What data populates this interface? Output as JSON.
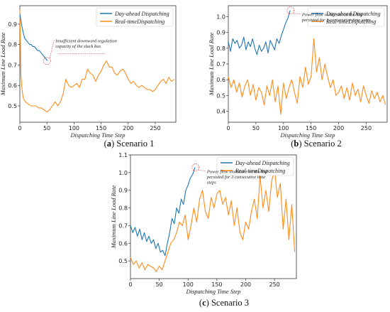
{
  "colors": {
    "day_ahead": "#1f77b4",
    "real_time": "#ff8c1a",
    "annotation": "#e05050"
  },
  "chart_data": [
    {
      "type": "line",
      "caption_label": "(a)",
      "caption_text": "Scenario 1",
      "xlabel": "Dispatching Time Step",
      "ylabel": "Maximum Line Load Rate",
      "xlim": [
        0,
        288
      ],
      "ylim": [
        0.42,
        0.99
      ],
      "xticks": [
        0,
        50,
        100,
        150,
        200,
        250
      ],
      "yticks": [
        0.5,
        0.6,
        0.7,
        0.8,
        0.9
      ],
      "tick_format": 1,
      "grid": false,
      "legend_position": "top-right",
      "annotation_lines": [
        "Insufficient downward regulation",
        "capacity of the slack bus"
      ],
      "annotation_point": [
        50,
        0.72
      ],
      "series": [
        {
          "name": "Day-ahead Dispatching",
          "color": "#1f77b4",
          "x": [
            0,
            3,
            6,
            9,
            12,
            15,
            18,
            21,
            24,
            27,
            30,
            33,
            36,
            39,
            42,
            45,
            48,
            51
          ],
          "y": [
            0.95,
            0.9,
            0.86,
            0.83,
            0.82,
            0.81,
            0.8,
            0.8,
            0.79,
            0.79,
            0.78,
            0.77,
            0.77,
            0.76,
            0.75,
            0.74,
            0.73,
            0.72
          ]
        },
        {
          "name": "Real-timeDispatching",
          "color": "#ff8c1a",
          "x": [
            0,
            2,
            4,
            6,
            8,
            10,
            15,
            20,
            25,
            30,
            35,
            40,
            45,
            50,
            55,
            60,
            65,
            70,
            75,
            80,
            85,
            90,
            95,
            100,
            105,
            110,
            115,
            120,
            125,
            130,
            135,
            140,
            145,
            150,
            155,
            160,
            165,
            170,
            175,
            180,
            185,
            190,
            195,
            200,
            205,
            210,
            215,
            220,
            225,
            230,
            235,
            240,
            245,
            250,
            255,
            260,
            265,
            270,
            275,
            280,
            285
          ],
          "y": [
            0.97,
            0.65,
            0.58,
            0.54,
            0.53,
            0.52,
            0.51,
            0.5,
            0.5,
            0.5,
            0.49,
            0.49,
            0.48,
            0.47,
            0.48,
            0.5,
            0.52,
            0.5,
            0.52,
            0.56,
            0.63,
            0.6,
            0.59,
            0.6,
            0.61,
            0.59,
            0.63,
            0.63,
            0.68,
            0.66,
            0.65,
            0.62,
            0.65,
            0.67,
            0.7,
            0.72,
            0.69,
            0.69,
            0.66,
            0.65,
            0.67,
            0.68,
            0.66,
            0.63,
            0.61,
            0.62,
            0.6,
            0.59,
            0.6,
            0.59,
            0.58,
            0.58,
            0.57,
            0.58,
            0.6,
            0.62,
            0.63,
            0.61,
            0.64,
            0.62,
            0.63
          ]
        }
      ]
    },
    {
      "type": "line",
      "caption_label": "(b)",
      "caption_text": "Scenario 2",
      "xlabel": "Dispatching Time Step",
      "ylabel": "Maximum Line Load Rate",
      "xlim": [
        0,
        288
      ],
      "ylim": [
        0.33,
        1.07
      ],
      "xticks": [
        0,
        50,
        100,
        150,
        200,
        250
      ],
      "yticks": [
        0.4,
        0.5,
        0.6,
        0.7,
        0.8,
        0.9,
        1.0
      ],
      "tick_format": 1,
      "grid": false,
      "legend_position": "top-right",
      "annotation_lines": [
        "Power flow violations on the line",
        "persisted for 3 consecutive time steps"
      ],
      "annotation_point": [
        113,
        1.04
      ],
      "series": [
        {
          "name": "Day-ahead Dispatching",
          "color": "#1f77b4",
          "x": [
            0,
            4,
            8,
            12,
            16,
            20,
            24,
            28,
            32,
            36,
            40,
            44,
            48,
            52,
            56,
            60,
            64,
            68,
            72,
            76,
            80,
            84,
            88,
            92,
            96,
            100,
            104,
            108,
            112
          ],
          "y": [
            0.84,
            0.78,
            0.86,
            0.83,
            0.85,
            0.8,
            0.82,
            0.87,
            0.79,
            0.84,
            0.81,
            0.86,
            0.8,
            0.76,
            0.82,
            0.78,
            0.8,
            0.84,
            0.77,
            0.85,
            0.82,
            0.79,
            0.86,
            0.83,
            0.88,
            0.92,
            0.96,
            0.99,
            1.04
          ]
        },
        {
          "name": "Real-timeDispatching",
          "color": "#ff8c1a",
          "x": [
            0,
            5,
            10,
            15,
            20,
            25,
            30,
            35,
            40,
            45,
            50,
            55,
            60,
            65,
            70,
            75,
            80,
            85,
            90,
            95,
            100,
            105,
            110,
            115,
            120,
            125,
            130,
            135,
            140,
            145,
            150,
            155,
            160,
            165,
            170,
            175,
            180,
            185,
            190,
            195,
            200,
            205,
            210,
            215,
            220,
            225,
            230,
            235,
            240,
            245,
            250,
            255,
            260,
            265,
            270,
            275,
            280,
            285
          ],
          "y": [
            0.62,
            0.55,
            0.6,
            0.52,
            0.58,
            0.49,
            0.56,
            0.6,
            0.5,
            0.57,
            0.47,
            0.55,
            0.52,
            0.44,
            0.56,
            0.5,
            0.6,
            0.46,
            0.56,
            0.38,
            0.58,
            0.48,
            0.55,
            0.6,
            0.52,
            0.45,
            0.62,
            0.55,
            0.68,
            0.57,
            0.62,
            0.86,
            0.65,
            0.74,
            0.6,
            0.7,
            0.62,
            0.55,
            0.6,
            0.5,
            0.52,
            0.56,
            0.48,
            0.55,
            0.47,
            0.58,
            0.5,
            0.54,
            0.46,
            0.56,
            0.5,
            0.45,
            0.53,
            0.48,
            0.52,
            0.46,
            0.5,
            0.44
          ]
        }
      ]
    },
    {
      "type": "line",
      "caption_label": "(c)",
      "caption_text": "Scenario 3",
      "xlabel": "Dispatching Time Step",
      "ylabel": "Maximum Line Load Rate",
      "xlim": [
        0,
        288
      ],
      "ylim": [
        0.4,
        1.1
      ],
      "xticks": [
        0,
        50,
        100,
        150,
        200,
        250
      ],
      "yticks": [
        0.5,
        0.6,
        0.7,
        0.8,
        0.9,
        1.0,
        1.1
      ],
      "tick_format": 1,
      "grid": false,
      "legend_position": "top-right",
      "annotation_lines": [
        "Power flow violations on the line",
        "persisted for 3 consecutive time",
        "steps"
      ],
      "annotation_point": [
        113,
        1.03
      ],
      "series": [
        {
          "name": "Day-ahead Dispatching",
          "color": "#1f77b4",
          "x": [
            0,
            4,
            8,
            12,
            16,
            20,
            24,
            28,
            32,
            36,
            40,
            44,
            48,
            52,
            56,
            60,
            64,
            68,
            72,
            76,
            80,
            84,
            88,
            92,
            96,
            100,
            104,
            108,
            112
          ],
          "y": [
            0.7,
            0.66,
            0.69,
            0.64,
            0.68,
            0.62,
            0.66,
            0.61,
            0.64,
            0.6,
            0.62,
            0.57,
            0.6,
            0.55,
            0.56,
            0.53,
            0.6,
            0.66,
            0.74,
            0.71,
            0.8,
            0.77,
            0.85,
            0.82,
            0.9,
            0.93,
            0.97,
            0.99,
            1.03
          ]
        },
        {
          "name": "Real-timeDispatching",
          "color": "#ff8c1a",
          "x": [
            0,
            5,
            10,
            15,
            20,
            25,
            30,
            35,
            40,
            45,
            50,
            55,
            60,
            65,
            70,
            75,
            80,
            85,
            90,
            95,
            100,
            105,
            110,
            115,
            120,
            125,
            130,
            135,
            140,
            145,
            150,
            155,
            160,
            165,
            170,
            175,
            180,
            185,
            190,
            195,
            200,
            205,
            210,
            215,
            220,
            225,
            230,
            235,
            240,
            245,
            250,
            255,
            260,
            265,
            270,
            275,
            280,
            285
          ],
          "y": [
            0.52,
            0.48,
            0.5,
            0.46,
            0.49,
            0.45,
            0.48,
            0.47,
            0.46,
            0.44,
            0.47,
            0.45,
            0.5,
            0.55,
            0.6,
            0.62,
            0.66,
            0.72,
            0.7,
            0.76,
            0.62,
            0.7,
            0.8,
            0.72,
            0.85,
            0.9,
            0.78,
            0.74,
            0.86,
            0.8,
            0.88,
            0.9,
            0.82,
            0.86,
            0.76,
            0.84,
            0.7,
            0.8,
            0.66,
            0.62,
            0.72,
            0.68,
            0.78,
            0.85,
            0.74,
            0.98,
            0.8,
            0.9,
            0.78,
            0.95,
            1.02,
            0.86,
            0.94,
            0.68,
            0.85,
            0.62,
            0.82,
            0.55
          ]
        }
      ]
    }
  ]
}
